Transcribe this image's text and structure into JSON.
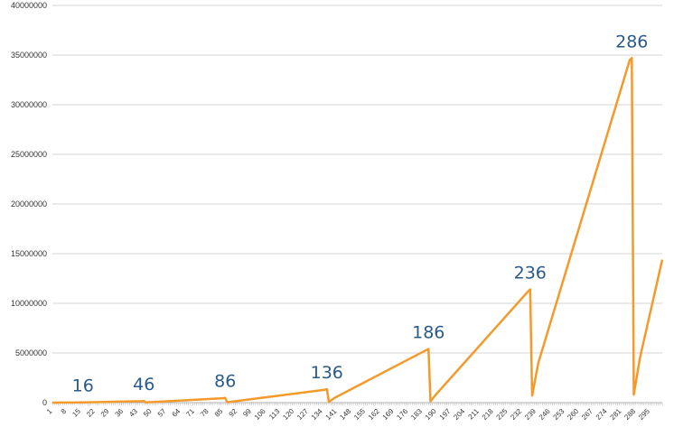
{
  "chart_data": {
    "type": "line",
    "title": "",
    "xlabel": "",
    "ylabel": "",
    "ylim": [
      0,
      40000000
    ],
    "y_ticks": [
      0,
      5000000,
      10000000,
      15000000,
      20000000,
      25000000,
      30000000,
      35000000,
      40000000
    ],
    "y_tick_labels": [
      "0",
      "5000000",
      "10000000",
      "15000000",
      "20000000",
      "25000000",
      "30000000",
      "35000000",
      "40000000"
    ],
    "xlim": [
      1,
      301
    ],
    "x_tick_labels": [
      "1",
      "8",
      "15",
      "22",
      "29",
      "36",
      "43",
      "50",
      "57",
      "64",
      "71",
      "78",
      "85",
      "92",
      "99",
      "106",
      "113",
      "120",
      "127",
      "134",
      "141",
      "148",
      "155",
      "162",
      "169",
      "176",
      "183",
      "190",
      "197",
      "204",
      "211",
      "218",
      "225",
      "232",
      "239",
      "246",
      "253",
      "260",
      "267",
      "274",
      "281",
      "288",
      "295"
    ],
    "x_tick_values": [
      1,
      8,
      15,
      22,
      29,
      36,
      43,
      50,
      57,
      64,
      71,
      78,
      85,
      92,
      99,
      106,
      113,
      120,
      127,
      134,
      141,
      148,
      155,
      162,
      169,
      176,
      183,
      190,
      197,
      204,
      211,
      218,
      225,
      232,
      239,
      246,
      253,
      260,
      267,
      274,
      281,
      288,
      295
    ],
    "grid": true,
    "legend": "none",
    "series": [
      {
        "color": "#f39a2b",
        "x": [
          1,
          14,
          15,
          16,
          45,
          46,
          47,
          85,
          86,
          87,
          135,
          136,
          137,
          140,
          185,
          186,
          187,
          190,
          235,
          236,
          237,
          240,
          285,
          286,
          287,
          290,
          301
        ],
        "y": [
          0,
          20000,
          25000,
          30000,
          150000,
          170000,
          20000,
          450000,
          480000,
          40000,
          1300000,
          1350000,
          80000,
          500000,
          5300000,
          5400000,
          150000,
          900000,
          11200000,
          11400000,
          700000,
          4000000,
          34500000,
          34700000,
          800000,
          4500000,
          14400000
        ]
      }
    ],
    "annotations": [
      {
        "text": "16",
        "x": 16,
        "y": 30000
      },
      {
        "text": "46",
        "x": 46,
        "y": 170000
      },
      {
        "text": "86",
        "x": 86,
        "y": 480000
      },
      {
        "text": "136",
        "x": 136,
        "y": 1350000
      },
      {
        "text": "186",
        "x": 186,
        "y": 5400000
      },
      {
        "text": "236",
        "x": 236,
        "y": 11400000
      },
      {
        "text": "286",
        "x": 286,
        "y": 34700000
      }
    ],
    "annotation_color": "#2a5a8a"
  }
}
